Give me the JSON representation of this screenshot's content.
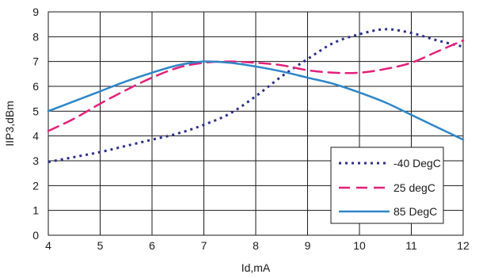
{
  "chart_data": {
    "type": "line",
    "xlabel": "Id,mA",
    "ylabel": "IIP3,dBm",
    "xlim": [
      4,
      12
    ],
    "ylim": [
      0,
      9
    ],
    "xticks": [
      "4",
      "5",
      "6",
      "7",
      "8",
      "9",
      "10",
      "11",
      "12"
    ],
    "yticks": [
      "0",
      "1",
      "2",
      "3",
      "4",
      "5",
      "6",
      "7",
      "8",
      "9"
    ],
    "grid": true,
    "legend_position": "bottom-right",
    "series": [
      {
        "name": "-40 DegC",
        "color": "#2b2f8a",
        "style": "dotted",
        "x": [
          4.0,
          4.5,
          5.0,
          5.5,
          6.0,
          6.5,
          7.0,
          7.5,
          8.0,
          8.5,
          9.0,
          9.5,
          10.0,
          10.5,
          11.0,
          11.5,
          12.0
        ],
        "y": [
          2.95,
          3.15,
          3.35,
          3.6,
          3.85,
          4.1,
          4.45,
          4.9,
          5.6,
          6.4,
          7.1,
          7.75,
          8.1,
          8.3,
          8.15,
          7.85,
          7.6
        ]
      },
      {
        "name": "25 degC",
        "color": "#e3207a",
        "style": "dashed",
        "x": [
          4.0,
          4.5,
          5.0,
          5.5,
          6.0,
          6.5,
          7.0,
          7.5,
          8.0,
          8.5,
          9.0,
          9.5,
          10.0,
          10.5,
          11.0,
          11.5,
          12.0
        ],
        "y": [
          4.2,
          4.7,
          5.3,
          5.85,
          6.35,
          6.75,
          6.95,
          7.0,
          6.95,
          6.85,
          6.65,
          6.55,
          6.55,
          6.7,
          6.95,
          7.4,
          7.85
        ]
      },
      {
        "name": "85 DegC",
        "color": "#2e86c8",
        "style": "solid",
        "x": [
          4.0,
          4.5,
          5.0,
          5.5,
          6.0,
          6.5,
          7.0,
          7.5,
          8.0,
          8.5,
          9.0,
          9.5,
          10.0,
          10.5,
          11.0,
          11.5,
          12.0
        ],
        "y": [
          5.0,
          5.4,
          5.8,
          6.2,
          6.55,
          6.85,
          7.0,
          6.95,
          6.8,
          6.6,
          6.35,
          6.1,
          5.75,
          5.35,
          4.85,
          4.35,
          3.85
        ]
      }
    ]
  }
}
